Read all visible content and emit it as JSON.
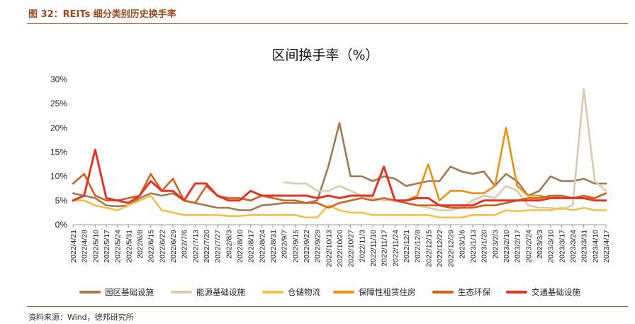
{
  "caption": "图 32：REITs 细分类别历史换手率",
  "source": "资料来源：Wind，德邦研究所",
  "chart_data": {
    "type": "line",
    "title": "区间换手率（%）",
    "ylim": [
      0,
      30
    ],
    "y_ticks": [
      "0%",
      "5%",
      "10%",
      "15%",
      "20%",
      "25%",
      "30%"
    ],
    "x_ticks": [
      "2022/4/21",
      "2022/4/28",
      "2022/5/10",
      "2022/5/17",
      "2022/5/24",
      "2022/5/31",
      "2022/6/8",
      "2022/6/15",
      "2022/6/22",
      "2022/6/29",
      "2022/7/6",
      "2022/7/13",
      "2022/7/20",
      "2022/7/27",
      "2022/8/3",
      "2022/8/10",
      "2022/8/17",
      "2022/8/24",
      "2022/8/31",
      "2022/9/7",
      "2022/9/15",
      "2022/9/22",
      "2022/9/29",
      "2022/10/13",
      "2022/10/20",
      "2022/10/27",
      "2022/11/3",
      "2022/11/10",
      "2022/11/17",
      "2022/11/24",
      "2022/12/1",
      "2022/12/8",
      "2022/12/15",
      "2022/12/22",
      "2022/12/29",
      "2023/1/6",
      "2023/1/13",
      "2023/1/20",
      "2023/2/3",
      "2023/2/10",
      "2023/2/17",
      "2023/2/24",
      "2023/3/3",
      "2023/3/10",
      "2023/3/17",
      "2023/3/24",
      "2023/3/31",
      "2023/4/10",
      "2023/4/17"
    ],
    "legend_position": "bottom",
    "series": [
      {
        "name": "园区基础设施",
        "color": "#a07a55",
        "values": [
          6.5,
          6,
          5.5,
          4,
          3.8,
          4,
          5.5,
          6.5,
          6,
          6.5,
          5,
          4.5,
          4,
          3.5,
          3.5,
          3,
          3,
          4,
          4.2,
          4.5,
          4.5,
          4.5,
          5,
          12,
          21,
          10,
          10,
          9,
          10,
          9.5,
          8,
          8.5,
          9,
          9,
          12,
          11,
          10.5,
          11,
          8,
          10.5,
          9,
          6,
          7,
          10,
          9,
          9,
          9.5,
          8.5,
          8.5
        ]
      },
      {
        "name": "能源基础设施",
        "color": "#d8cbb0",
        "values": [
          null,
          null,
          null,
          null,
          null,
          null,
          null,
          null,
          null,
          null,
          null,
          null,
          null,
          null,
          null,
          null,
          null,
          null,
          null,
          8.8,
          8.5,
          8.5,
          7,
          7,
          8,
          7,
          6,
          5.5,
          5,
          5,
          4.5,
          4,
          3.5,
          3,
          3,
          3.5,
          5,
          6,
          5.5,
          8,
          7,
          4,
          3.5,
          3.5,
          3.2,
          4,
          28,
          9,
          7
        ]
      },
      {
        "name": "仓储物流",
        "color": "#f2c04a",
        "values": [
          5,
          5,
          4,
          3.5,
          3,
          4,
          5,
          6,
          3,
          2.5,
          2,
          2,
          2,
          2,
          1.8,
          1.8,
          2,
          2,
          2,
          2,
          2,
          1.5,
          1.5,
          4,
          3,
          2.5,
          2.5,
          2,
          2,
          2,
          2,
          2,
          2,
          1.5,
          1.5,
          1.5,
          2,
          2,
          2,
          3,
          2.8,
          3,
          3,
          3,
          3.5,
          3,
          3.5,
          3,
          3
        ]
      },
      {
        "name": "保障性租赁住房",
        "color": "#e8920f",
        "values": [
          null,
          null,
          null,
          null,
          null,
          null,
          null,
          null,
          null,
          null,
          null,
          null,
          null,
          null,
          null,
          null,
          null,
          null,
          null,
          null,
          null,
          null,
          null,
          null,
          null,
          null,
          null,
          null,
          null,
          null,
          5,
          6,
          12.5,
          5,
          7,
          7,
          6.5,
          6.5,
          8,
          20,
          8,
          6,
          6,
          5.5,
          6,
          5.5,
          5.5,
          5.5,
          6.5
        ]
      },
      {
        "name": "生态环保",
        "color": "#d0611c",
        "values": [
          8.5,
          10.5,
          6,
          5,
          5,
          5.5,
          6,
          10.5,
          7,
          9.5,
          5,
          4.5,
          8,
          6,
          5.5,
          5.5,
          5,
          6,
          5.5,
          5,
          5,
          4.5,
          4.5,
          3.5,
          4.5,
          5,
          5.5,
          5,
          5.5,
          5,
          4.5,
          4,
          4,
          4,
          3.5,
          3.5,
          3.5,
          4,
          4,
          4.5,
          5,
          5.5,
          5.5,
          6,
          6,
          5.5,
          6,
          5.5,
          6.5
        ]
      },
      {
        "name": "交通基础设施",
        "color": "#e0362a",
        "values": [
          5,
          6,
          15.5,
          5.5,
          5,
          4.5,
          6,
          9,
          7,
          7,
          5,
          8.5,
          8.5,
          6,
          5,
          5,
          7,
          6,
          6,
          6,
          6,
          6,
          5.5,
          6,
          5.5,
          6,
          6,
          6,
          12,
          5,
          5,
          5.5,
          5.5,
          4,
          4,
          4,
          4,
          5,
          5,
          5,
          5,
          5,
          5,
          5.5,
          5.5,
          5.5,
          5.5,
          5,
          5
        ]
      }
    ]
  }
}
